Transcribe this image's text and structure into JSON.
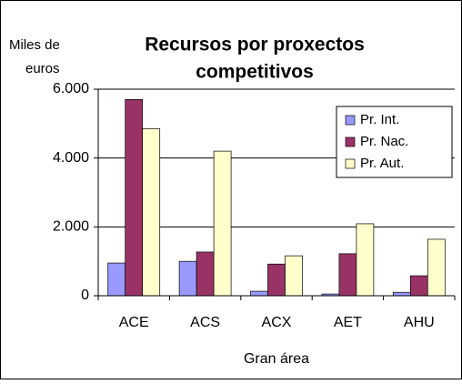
{
  "chart_data": {
    "type": "bar",
    "title": [
      "Recursos por proxectos",
      "competitivos"
    ],
    "ylabel": [
      "Miles de",
      "euros"
    ],
    "xlabel": "Gran área",
    "categories": [
      "ACE",
      "ACS",
      "ACX",
      "AET",
      "AHU"
    ],
    "series": [
      {
        "name": "Pr. Int.",
        "color": "#9999ff",
        "values": [
          950,
          1000,
          130,
          50,
          100
        ]
      },
      {
        "name": "Pr. Nac.",
        "color": "#993366",
        "values": [
          5700,
          1270,
          920,
          1220,
          580
        ]
      },
      {
        "name": "Pr. Aut.",
        "color": "#ffffcc",
        "values": [
          4850,
          4200,
          1160,
          2090,
          1640
        ]
      }
    ],
    "ylim": [
      0,
      6000
    ],
    "yticks": [
      0,
      {
        "value": 2000,
        "label": "2.000"
      },
      {
        "value": 4000,
        "label": "4.000"
      },
      {
        "value": 6000,
        "label": "6.000"
      }
    ],
    "grid": true,
    "legend": "upper right"
  }
}
